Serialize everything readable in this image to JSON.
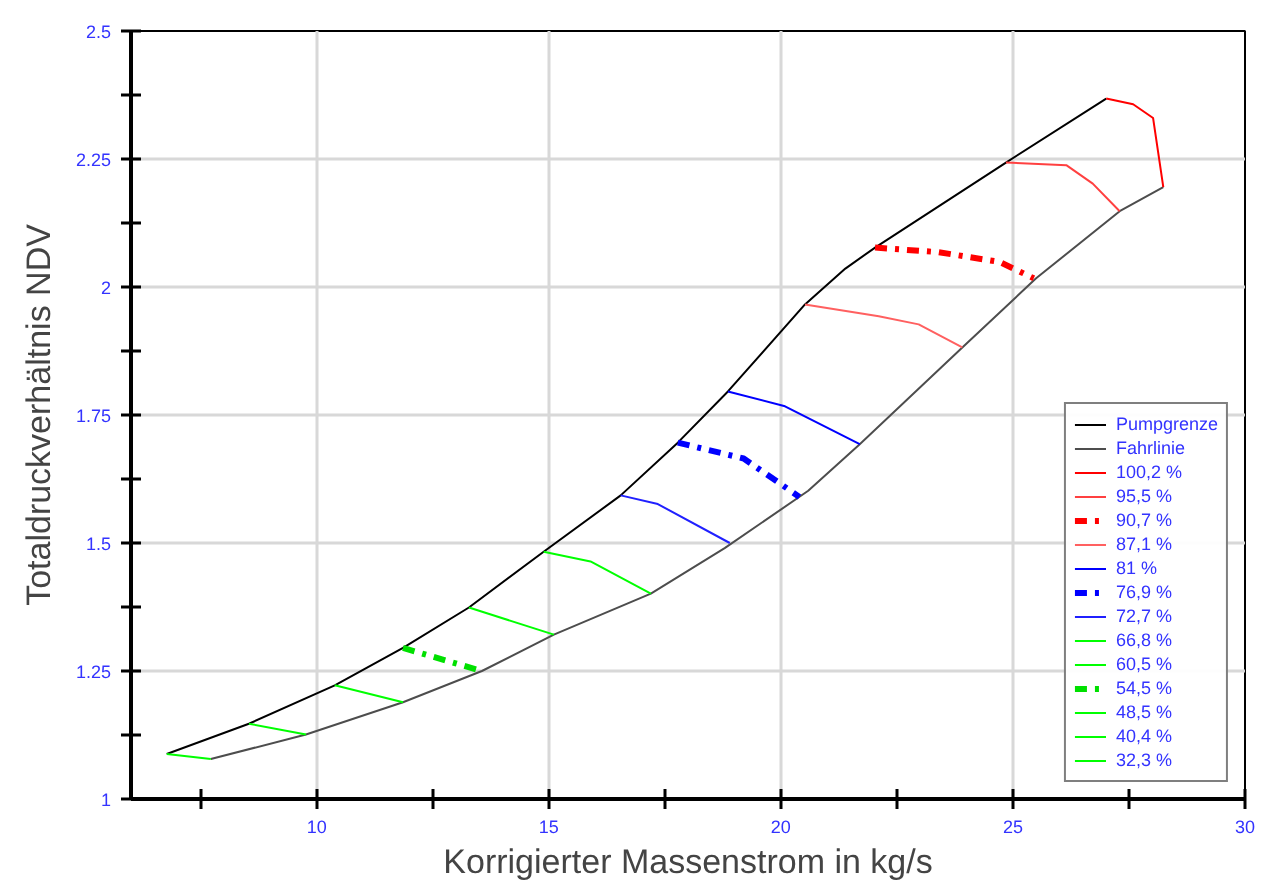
{
  "chart_data": {
    "type": "line",
    "xlabel": "Korrigierter Massenstrom in kg/s",
    "ylabel": "Totaldruckverhältnis NDV",
    "xlim": [
      6,
      30
    ],
    "ylim": [
      1,
      2.5
    ],
    "xticks": [
      {
        "value": 7.5,
        "label": null
      },
      10,
      {
        "value": 12.5,
        "label": null
      },
      15,
      {
        "value": 17.5,
        "label": null
      },
      20,
      {
        "value": 22.5,
        "label": null
      },
      25,
      {
        "value": 27.5,
        "label": null
      },
      30
    ],
    "yticks": [
      1,
      {
        "value": 1.125,
        "label": null
      },
      1.25,
      {
        "value": 1.375,
        "label": null
      },
      1.5,
      {
        "value": 1.625,
        "label": null
      },
      1.75,
      {
        "value": 1.875,
        "label": null
      },
      2,
      {
        "value": 2.125,
        "label": null
      },
      2.25,
      {
        "value": 2.375,
        "label": null
      },
      2.5
    ],
    "grid": true,
    "legend": "bottom right",
    "marker": "none",
    "series": [
      {
        "name": "Pumpgrenze",
        "color": "#000000",
        "x": [
          6.77,
          8.54,
          10.39,
          11.86,
          13.28,
          14.89,
          16.55,
          17.78,
          18.86,
          20.52,
          21.39,
          22.03,
          24.85,
          27.01
        ],
        "values": [
          1.088,
          1.147,
          1.222,
          1.295,
          1.374,
          1.483,
          1.593,
          1.696,
          1.796,
          1.966,
          2.036,
          2.077,
          2.243,
          2.368
        ]
      },
      {
        "name": "Fahrlinie",
        "color": "#4d4d4d",
        "x": [
          7.72,
          9.77,
          11.86,
          13.56,
          15.11,
          17.2,
          18.79,
          20.59,
          21.7,
          23.91,
          25.5,
          27.3,
          28.24
        ],
        "values": [
          1.078,
          1.126,
          1.189,
          1.25,
          1.321,
          1.401,
          1.49,
          1.602,
          1.693,
          1.882,
          2.017,
          2.148,
          2.195
        ]
      },
      {
        "name": "100,2 %",
        "color": "#ff0000",
        "x": [
          27.01,
          27.59,
          28.02,
          28.24
        ],
        "values": [
          2.368,
          2.357,
          2.33,
          2.195
        ]
      },
      {
        "name": "95,5 %",
        "color": "#ff4040",
        "x": [
          24.85,
          26.15,
          26.72,
          27.3
        ],
        "values": [
          2.243,
          2.238,
          2.202,
          2.148
        ]
      },
      {
        "name": "90,7 %",
        "color": "#ff0000",
        "line_style": "dashed",
        "x": [
          22.03,
          23.4,
          24.71,
          25.45
        ],
        "values": [
          2.077,
          2.068,
          2.049,
          2.017
        ]
      },
      {
        "name": "87,1 %",
        "color": "#ff6060",
        "x": [
          20.52,
          22.11,
          22.97,
          23.91
        ],
        "values": [
          1.966,
          1.943,
          1.927,
          1.882
        ]
      },
      {
        "name": "81 %",
        "color": "#0000ff",
        "x": [
          18.86,
          20.09,
          21.7
        ],
        "values": [
          1.796,
          1.767,
          1.693
        ]
      },
      {
        "name": "76,9 %",
        "color": "#0000ff",
        "line_style": "dashed",
        "x": [
          17.78,
          19.2,
          20.4
        ],
        "values": [
          1.696,
          1.665,
          1.59
        ]
      },
      {
        "name": "72,7 %",
        "color": "#2020ff",
        "x": [
          16.55,
          17.35,
          18.9
        ],
        "values": [
          1.593,
          1.576,
          1.5
        ]
      },
      {
        "name": "66,8 %",
        "color": "#00ff00",
        "x": [
          14.89,
          15.9,
          17.2
        ],
        "values": [
          1.483,
          1.464,
          1.401
        ]
      },
      {
        "name": "60,5 %",
        "color": "#00ff00",
        "x": [
          13.28,
          15.11
        ],
        "values": [
          1.374,
          1.321
        ]
      },
      {
        "name": "54,5 %",
        "color": "#00e000",
        "line_style": "dashed",
        "x": [
          11.86,
          13.56
        ],
        "values": [
          1.295,
          1.25
        ]
      },
      {
        "name": "48,5 %",
        "color": "#00ff00",
        "x": [
          10.39,
          11.86
        ],
        "values": [
          1.222,
          1.189
        ]
      },
      {
        "name": "40,4 %",
        "color": "#00ff00",
        "x": [
          8.54,
          9.77
        ],
        "values": [
          1.147,
          1.126
        ]
      },
      {
        "name": "32,3 %",
        "color": "#00ff00",
        "x": [
          6.77,
          7.72
        ],
        "values": [
          1.088,
          1.078
        ]
      }
    ]
  }
}
